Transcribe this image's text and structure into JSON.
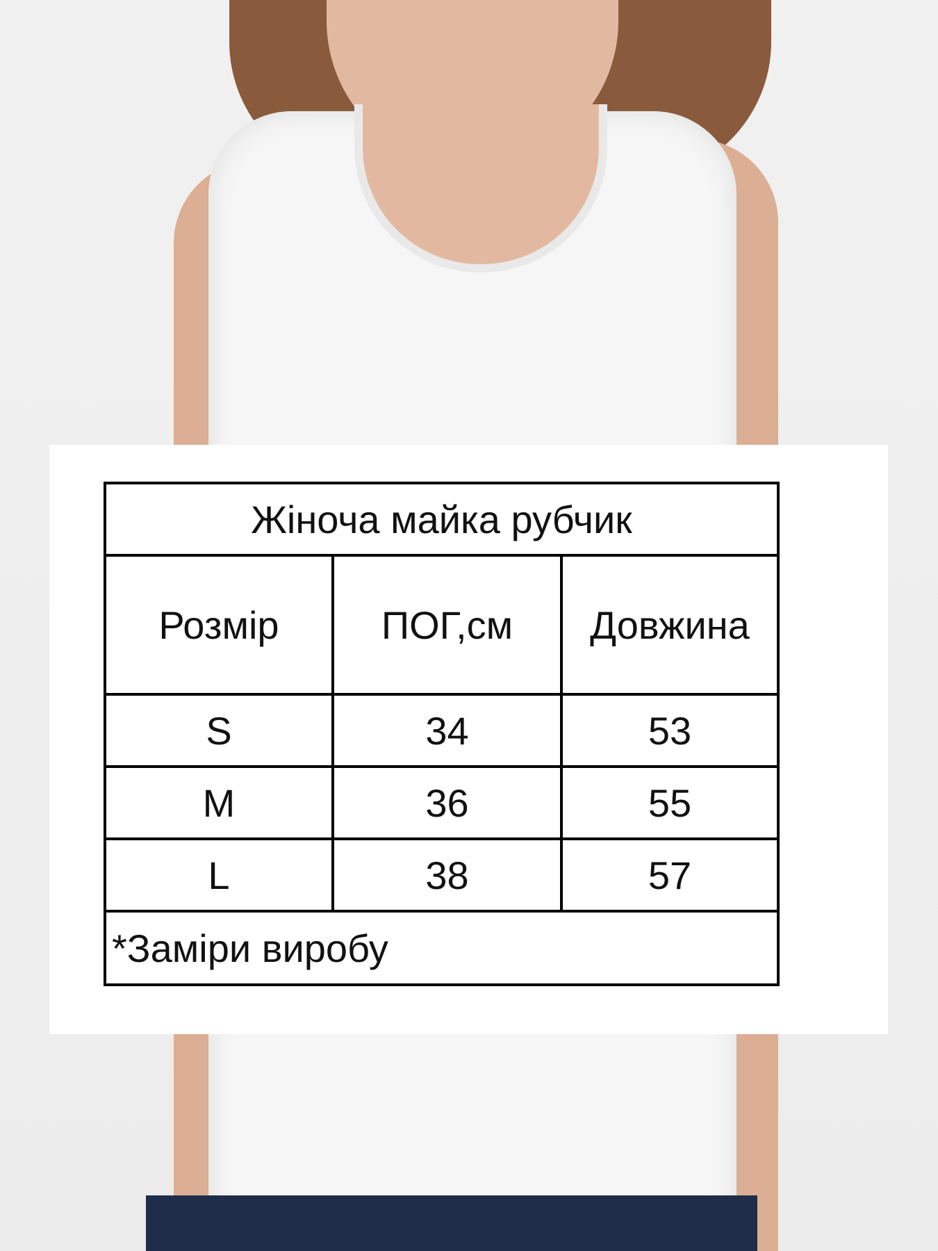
{
  "size_chart": {
    "title": "Жіноча майка рубчик",
    "headers": [
      "Розмір",
      "ПОГ,см",
      "Довжина"
    ],
    "rows": [
      [
        "S",
        "34",
        "53"
      ],
      [
        "M",
        "36",
        "55"
      ],
      [
        "L",
        "38",
        "57"
      ]
    ],
    "footnote": "*Заміри виробу"
  }
}
